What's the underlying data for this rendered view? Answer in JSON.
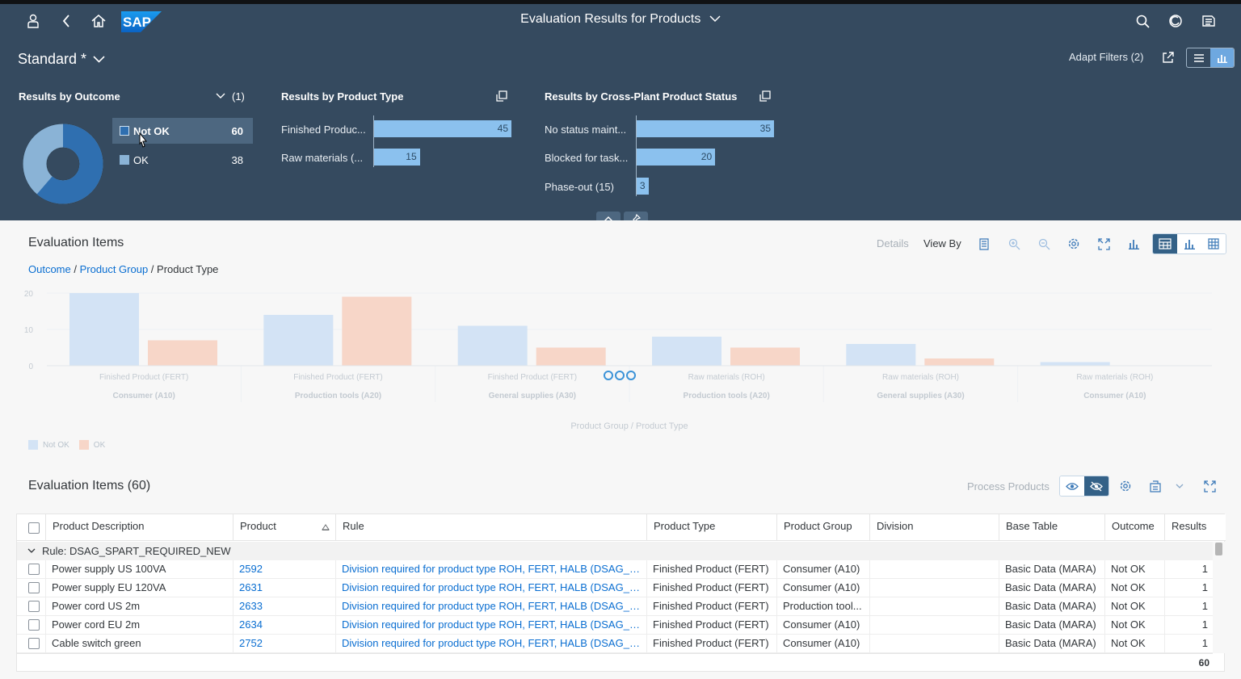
{
  "shell": {
    "title": "Evaluation Results for Products",
    "logo_text": "SAP"
  },
  "header": {
    "variant": "Standard *",
    "adapt_filters": "Adapt Filters (2)",
    "cards": {
      "outcome": {
        "title": "Results by Outcome",
        "selection_count": "(1)",
        "items": [
          {
            "label": "Not OK",
            "count": "60",
            "value": 60,
            "color": "#2f6fb0"
          },
          {
            "label": "OK",
            "count": "38",
            "value": 38,
            "color": "#8ab3d6"
          }
        ]
      },
      "product_type": {
        "title": "Results by Product Type",
        "max": 45,
        "items": [
          {
            "label": "Finished Produc...",
            "value": 45,
            "text": "45"
          },
          {
            "label": "Raw materials (...",
            "value": 15,
            "text": "15"
          }
        ]
      },
      "status": {
        "title": "Results by Cross-Plant Product Status",
        "max": 35,
        "items": [
          {
            "label": "No status maint...",
            "value": 35,
            "text": "35"
          },
          {
            "label": "Blocked for task...",
            "value": 20,
            "text": "20"
          },
          {
            "label": "Phase-out (15)",
            "value": 3,
            "text": "3"
          }
        ]
      }
    }
  },
  "evaluation": {
    "title": "Evaluation Items",
    "details": "Details",
    "view_by": "View By",
    "breadcrumb": {
      "outcome": "Outcome",
      "product_group": "Product Group",
      "current": "Product Type",
      "sep": "/"
    }
  },
  "chart_data": {
    "type": "bar",
    "title": "",
    "xlabel": "Product Group / Product Type",
    "ylabel": "",
    "ylim": [
      0,
      20
    ],
    "yticks": [
      "20",
      "10",
      "0"
    ],
    "categories": [
      {
        "type": "Finished Product (FERT)",
        "group": "Consumer (A10)"
      },
      {
        "type": "Finished Product (FERT)",
        "group": "Production tools (A20)"
      },
      {
        "type": "Finished Product (FERT)",
        "group": "General supplies (A30)"
      },
      {
        "type": "Raw materials (ROH)",
        "group": "Production tools (A20)"
      },
      {
        "type": "Raw materials (ROH)",
        "group": "General supplies (A30)"
      },
      {
        "type": "Raw materials (ROH)",
        "group": "Consumer (A10)"
      }
    ],
    "series": [
      {
        "name": "Not OK",
        "color": "#d3e3f5",
        "values": [
          20,
          14,
          11,
          8,
          6,
          1
        ]
      },
      {
        "name": "OK",
        "color": "#f7d6c8",
        "values": [
          7,
          19,
          5,
          5,
          2,
          0
        ]
      }
    ]
  },
  "items": {
    "title": "Evaluation Items (60)",
    "process_products": "Process Products",
    "columns": [
      "Product Description",
      "Product",
      "Rule",
      "Product Type",
      "Product Group",
      "Division",
      "Base Table",
      "Outcome",
      "Results"
    ],
    "group_label": "Rule: DSAG_SPART_REQUIRED_NEW",
    "rows": [
      {
        "desc": "Power supply US 100VA",
        "product": "2592",
        "rule": "Division required for product type ROH, FERT, HALB (DSAG_SPART_REQUIRED_NEW)",
        "type": "Finished Product (FERT)",
        "group": "Consumer (A10)",
        "division": "",
        "table": "Basic Data (MARA)",
        "outcome": "Not OK",
        "results": "1"
      },
      {
        "desc": "Power supply EU 120VA",
        "product": "2631",
        "rule": "Division required for product type ROH, FERT, HALB (DSAG_SPART_REQUIRED_NEW)",
        "type": "Finished Product (FERT)",
        "group": "Consumer (A10)",
        "division": "",
        "table": "Basic Data (MARA)",
        "outcome": "Not OK",
        "results": "1"
      },
      {
        "desc": "Power cord US 2m",
        "product": "2633",
        "rule": "Division required for product type ROH, FERT, HALB (DSAG_SPART_REQUIRED_NEW)",
        "type": "Finished Product (FERT)",
        "group": "Production tool...",
        "division": "",
        "table": "Basic Data (MARA)",
        "outcome": "Not OK",
        "results": "1"
      },
      {
        "desc": "Power cord EU 2m",
        "product": "2634",
        "rule": "Division required for product type ROH, FERT, HALB (DSAG_SPART_REQUIRED_NEW)",
        "type": "Finished Product (FERT)",
        "group": "Consumer (A10)",
        "division": "",
        "table": "Basic Data (MARA)",
        "outcome": "Not OK",
        "results": "1"
      },
      {
        "desc": "Cable switch green",
        "product": "2752",
        "rule": "Division required for product type ROH, FERT, HALB (DSAG_SPART_REQUIRED_NEW)",
        "type": "Finished Product (FERT)",
        "group": "Consumer (A10)",
        "division": "",
        "table": "Basic Data (MARA)",
        "outcome": "Not OK",
        "results": "1"
      }
    ],
    "total": "60"
  }
}
